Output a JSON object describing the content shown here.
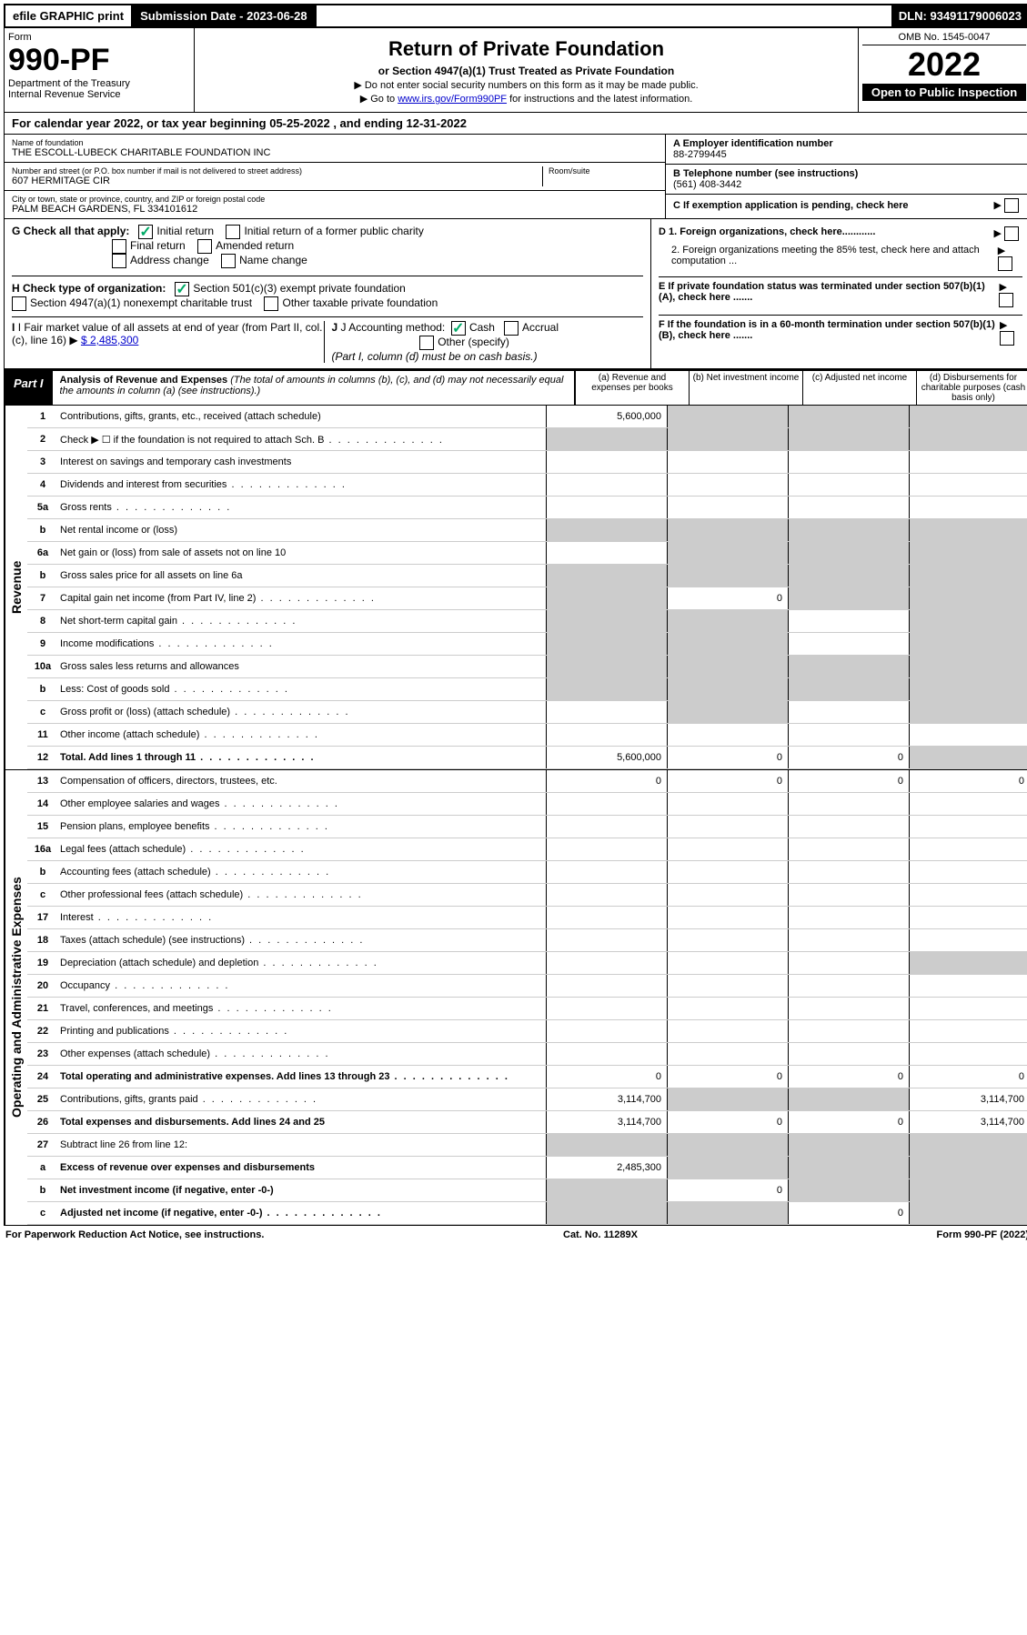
{
  "top": {
    "efile": "efile GRAPHIC print",
    "subdate_lbl": "Submission Date - 2023-06-28",
    "dln": "DLN: 93491179006023"
  },
  "hdr": {
    "form_lbl": "Form",
    "form_num": "990-PF",
    "dept": "Department of the Treasury",
    "irs": "Internal Revenue Service",
    "title": "Return of Private Foundation",
    "subtitle": "or Section 4947(a)(1) Trust Treated as Private Foundation",
    "inst1": "▶ Do not enter social security numbers on this form as it may be made public.",
    "inst2_pre": "▶ Go to ",
    "inst2_link": "www.irs.gov/Form990PF",
    "inst2_post": " for instructions and the latest information.",
    "omb": "OMB No. 1545-0047",
    "year": "2022",
    "open": "Open to Public Inspection"
  },
  "cal": {
    "text": "For calendar year 2022, or tax year beginning 05-25-2022                              , and ending 12-31-2022"
  },
  "entity": {
    "name_lbl": "Name of foundation",
    "name": "THE ESCOLL-LUBECK CHARITABLE FOUNDATION INC",
    "addr_lbl": "Number and street (or P.O. box number if mail is not delivered to street address)",
    "room_lbl": "Room/suite",
    "addr": "607 HERMITAGE CIR",
    "city_lbl": "City or town, state or province, country, and ZIP or foreign postal code",
    "city": "PALM BEACH GARDENS, FL  334101612",
    "a_lbl": "A Employer identification number",
    "a_val": "88-2799445",
    "b_lbl": "B Telephone number (see instructions)",
    "b_val": "(561) 408-3442",
    "c_lbl": "C If exemption application is pending, check here"
  },
  "g": {
    "lbl": "G Check all that apply:",
    "opts": [
      "Initial return",
      "Initial return of a former public charity",
      "Final return",
      "Amended return",
      "Address change",
      "Name change"
    ]
  },
  "h": {
    "lbl": "H Check type of organization:",
    "o1": "Section 501(c)(3) exempt private foundation",
    "o2": "Section 4947(a)(1) nonexempt charitable trust",
    "o3": "Other taxable private foundation"
  },
  "i": {
    "lbl": "I Fair market value of all assets at end of year (from Part II, col. (c), line 16)",
    "val": "$  2,485,300"
  },
  "j": {
    "lbl": "J Accounting method:",
    "o1": "Cash",
    "o2": "Accrual",
    "o3": "Other (specify)",
    "note": "(Part I, column (d) must be on cash basis.)"
  },
  "d": {
    "d1": "D 1. Foreign organizations, check here............",
    "d2": "2. Foreign organizations meeting the 85% test, check here and attach computation ...",
    "e": "E  If private foundation status was terminated under section 507(b)(1)(A), check here .......",
    "f": "F  If the foundation is in a 60-month termination under section 507(b)(1)(B), check here ......."
  },
  "part1": {
    "lbl": "Part I",
    "title": "Analysis of Revenue and Expenses",
    "note": "(The total of amounts in columns (b), (c), and (d) may not necessarily equal the amounts in column (a) (see instructions).)",
    "col_a": "(a)   Revenue and expenses per books",
    "col_b": "(b)   Net investment income",
    "col_c": "(c)   Adjusted net income",
    "col_d": "(d)   Disbursements for charitable purposes (cash basis only)"
  },
  "side": {
    "rev": "Revenue",
    "exp": "Operating and Administrative Expenses"
  },
  "rows_rev": [
    {
      "n": "1",
      "d": "Contributions, gifts, grants, etc., received (attach schedule)",
      "a": "5,600,000",
      "shade": [
        "b",
        "c",
        "d"
      ]
    },
    {
      "n": "2",
      "d": "Check ▶ ☐ if the foundation is not required to attach Sch. B",
      "dots": true,
      "shade": [
        "a",
        "b",
        "c",
        "d"
      ]
    },
    {
      "n": "3",
      "d": "Interest on savings and temporary cash investments"
    },
    {
      "n": "4",
      "d": "Dividends and interest from securities",
      "dots": true
    },
    {
      "n": "5a",
      "d": "Gross rents",
      "dots": true
    },
    {
      "n": "b",
      "d": "Net rental income or (loss)",
      "shade": [
        "a",
        "b",
        "c",
        "d"
      ]
    },
    {
      "n": "6a",
      "d": "Net gain or (loss) from sale of assets not on line 10",
      "shade": [
        "b",
        "c",
        "d"
      ]
    },
    {
      "n": "b",
      "d": "Gross sales price for all assets on line 6a",
      "shade": [
        "a",
        "b",
        "c",
        "d"
      ]
    },
    {
      "n": "7",
      "d": "Capital gain net income (from Part IV, line 2)",
      "dots": true,
      "b": "0",
      "shade": [
        "a",
        "c",
        "d"
      ]
    },
    {
      "n": "8",
      "d": "Net short-term capital gain",
      "dots": true,
      "shade": [
        "a",
        "b",
        "d"
      ]
    },
    {
      "n": "9",
      "d": "Income modifications",
      "dots": true,
      "shade": [
        "a",
        "b",
        "d"
      ]
    },
    {
      "n": "10a",
      "d": "Gross sales less returns and allowances",
      "shade": [
        "a",
        "b",
        "c",
        "d"
      ]
    },
    {
      "n": "b",
      "d": "Less: Cost of goods sold",
      "dots": true,
      "shade": [
        "a",
        "b",
        "c",
        "d"
      ]
    },
    {
      "n": "c",
      "d": "Gross profit or (loss) (attach schedule)",
      "dots": true,
      "shade": [
        "b",
        "d"
      ]
    },
    {
      "n": "11",
      "d": "Other income (attach schedule)",
      "dots": true
    },
    {
      "n": "12",
      "d": "Total. Add lines 1 through 11",
      "dots": true,
      "bold": true,
      "a": "5,600,000",
      "b": "0",
      "c": "0",
      "shade": [
        "d"
      ]
    }
  ],
  "rows_exp": [
    {
      "n": "13",
      "d": "Compensation of officers, directors, trustees, etc.",
      "a": "0",
      "b": "0",
      "c": "0",
      "dd": "0"
    },
    {
      "n": "14",
      "d": "Other employee salaries and wages",
      "dots": true
    },
    {
      "n": "15",
      "d": "Pension plans, employee benefits",
      "dots": true
    },
    {
      "n": "16a",
      "d": "Legal fees (attach schedule)",
      "dots": true
    },
    {
      "n": "b",
      "d": "Accounting fees (attach schedule)",
      "dots": true
    },
    {
      "n": "c",
      "d": "Other professional fees (attach schedule)",
      "dots": true
    },
    {
      "n": "17",
      "d": "Interest",
      "dots": true
    },
    {
      "n": "18",
      "d": "Taxes (attach schedule) (see instructions)",
      "dots": true
    },
    {
      "n": "19",
      "d": "Depreciation (attach schedule) and depletion",
      "dots": true,
      "shade": [
        "d"
      ]
    },
    {
      "n": "20",
      "d": "Occupancy",
      "dots": true
    },
    {
      "n": "21",
      "d": "Travel, conferences, and meetings",
      "dots": true
    },
    {
      "n": "22",
      "d": "Printing and publications",
      "dots": true
    },
    {
      "n": "23",
      "d": "Other expenses (attach schedule)",
      "dots": true
    },
    {
      "n": "24",
      "d": "Total operating and administrative expenses. Add lines 13 through 23",
      "dots": true,
      "bold": true,
      "a": "0",
      "b": "0",
      "c": "0",
      "dd": "0"
    },
    {
      "n": "25",
      "d": "Contributions, gifts, grants paid",
      "dots": true,
      "a": "3,114,700",
      "dd": "3,114,700",
      "shade": [
        "b",
        "c"
      ]
    },
    {
      "n": "26",
      "d": "Total expenses and disbursements. Add lines 24 and 25",
      "bold": true,
      "a": "3,114,700",
      "b": "0",
      "c": "0",
      "dd": "3,114,700"
    },
    {
      "n": "27",
      "d": "Subtract line 26 from line 12:",
      "shade": [
        "a",
        "b",
        "c",
        "d"
      ]
    },
    {
      "n": "a",
      "d": "Excess of revenue over expenses and disbursements",
      "bold": true,
      "a": "2,485,300",
      "shade": [
        "b",
        "c",
        "d"
      ]
    },
    {
      "n": "b",
      "d": "Net investment income (if negative, enter -0-)",
      "bold": true,
      "b": "0",
      "shade": [
        "a",
        "c",
        "d"
      ]
    },
    {
      "n": "c",
      "d": "Adjusted net income (if negative, enter -0-)",
      "dots": true,
      "bold": true,
      "c": "0",
      "shade": [
        "a",
        "b",
        "d"
      ]
    }
  ],
  "footer": {
    "left": "For Paperwork Reduction Act Notice, see instructions.",
    "mid": "Cat. No. 11289X",
    "right": "Form 990-PF (2022)"
  }
}
